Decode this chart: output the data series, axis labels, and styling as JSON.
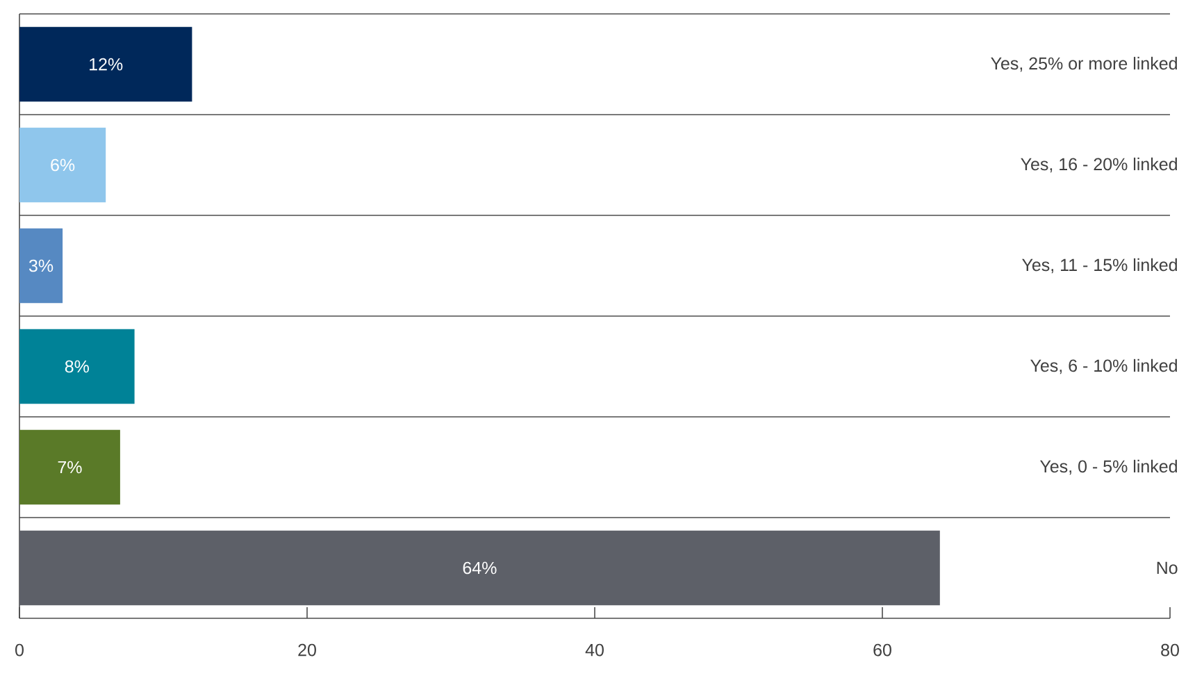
{
  "chart_data": {
    "type": "bar",
    "orientation": "horizontal",
    "categories": [
      "Yes, 25% or more linked",
      "Yes, 16 - 20% linked",
      "Yes, 11 - 15% linked",
      "Yes, 6 - 10% linked",
      "Yes, 0 - 5% linked",
      "No"
    ],
    "values": [
      12,
      6,
      3,
      8,
      7,
      64
    ],
    "value_labels": [
      "12%",
      "6%",
      "3%",
      "8%",
      "7%",
      "64%"
    ],
    "colors": [
      "#00285a",
      "#8fc6ec",
      "#5689c2",
      "#008297",
      "#5a7a28",
      "#5d6068"
    ],
    "xlim": [
      0,
      80
    ],
    "xticks": [
      0,
      20,
      40,
      60,
      80
    ],
    "grid": "y"
  }
}
